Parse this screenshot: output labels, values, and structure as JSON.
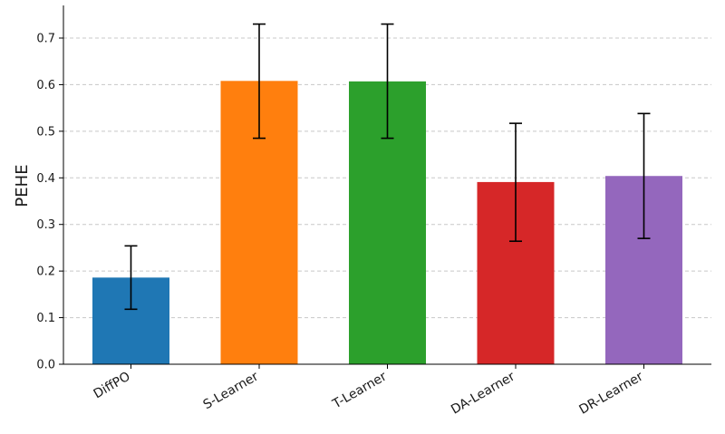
{
  "chart_data": {
    "type": "bar",
    "title": "",
    "xlabel": "",
    "ylabel": "PEHE",
    "ylim": [
      0,
      0.77
    ],
    "yticks": [
      0.0,
      0.1,
      0.2,
      0.3,
      0.4,
      0.5,
      0.6,
      0.7
    ],
    "ytick_labels": [
      "0.0",
      "0.1",
      "0.2",
      "0.3",
      "0.4",
      "0.5",
      "0.6",
      "0.7"
    ],
    "grid": "y-dashed",
    "categories": [
      "DiffPO",
      "S-Learner",
      "T-Learner",
      "DA-Learner",
      "DR-Learner"
    ],
    "values": [
      0.186,
      0.608,
      0.607,
      0.391,
      0.404
    ],
    "error_low": [
      0.118,
      0.485,
      0.485,
      0.264,
      0.27
    ],
    "error_high": [
      0.254,
      0.73,
      0.73,
      0.517,
      0.538
    ],
    "colors": [
      "#1f77b4",
      "#ff7f0e",
      "#2ca02c",
      "#d62728",
      "#9467bd"
    ]
  }
}
